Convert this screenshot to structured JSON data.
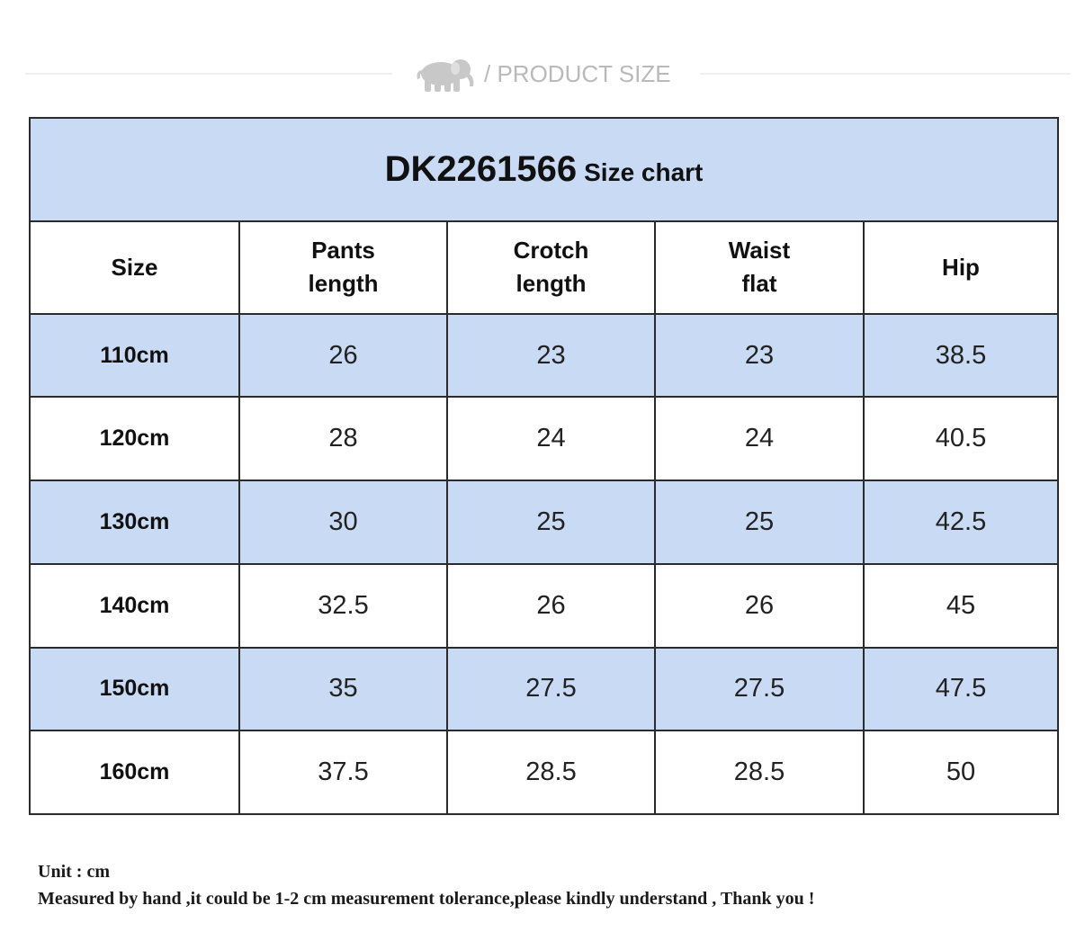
{
  "header": {
    "title": "/ PRODUCT SIZE",
    "icon": "elephant-icon"
  },
  "size_chart": {
    "code": "DK2261566",
    "suffix": "Size chart",
    "columns": [
      [
        "Size"
      ],
      [
        "Pants",
        "length"
      ],
      [
        "Crotch",
        "length"
      ],
      [
        "Waist",
        "flat"
      ],
      [
        "Hip"
      ]
    ],
    "rows": [
      [
        "110cm",
        "26",
        "23",
        "23",
        "38.5"
      ],
      [
        "120cm",
        "28",
        "24",
        "24",
        "40.5"
      ],
      [
        "130cm",
        "30",
        "25",
        "25",
        "42.5"
      ],
      [
        "140cm",
        "32.5",
        "26",
        "26",
        "45"
      ],
      [
        "150cm",
        "35",
        "27.5",
        "27.5",
        "47.5"
      ],
      [
        "160cm",
        "37.5",
        "28.5",
        "28.5",
        "50"
      ]
    ],
    "colors": {
      "shaded": "#c9daf4",
      "border": "#2b2b2b"
    }
  },
  "notes": {
    "unit": "Unit : cm",
    "tolerance": "Measured by hand ,it could be 1-2 cm measurement tolerance,please kindly understand , Thank you !"
  }
}
